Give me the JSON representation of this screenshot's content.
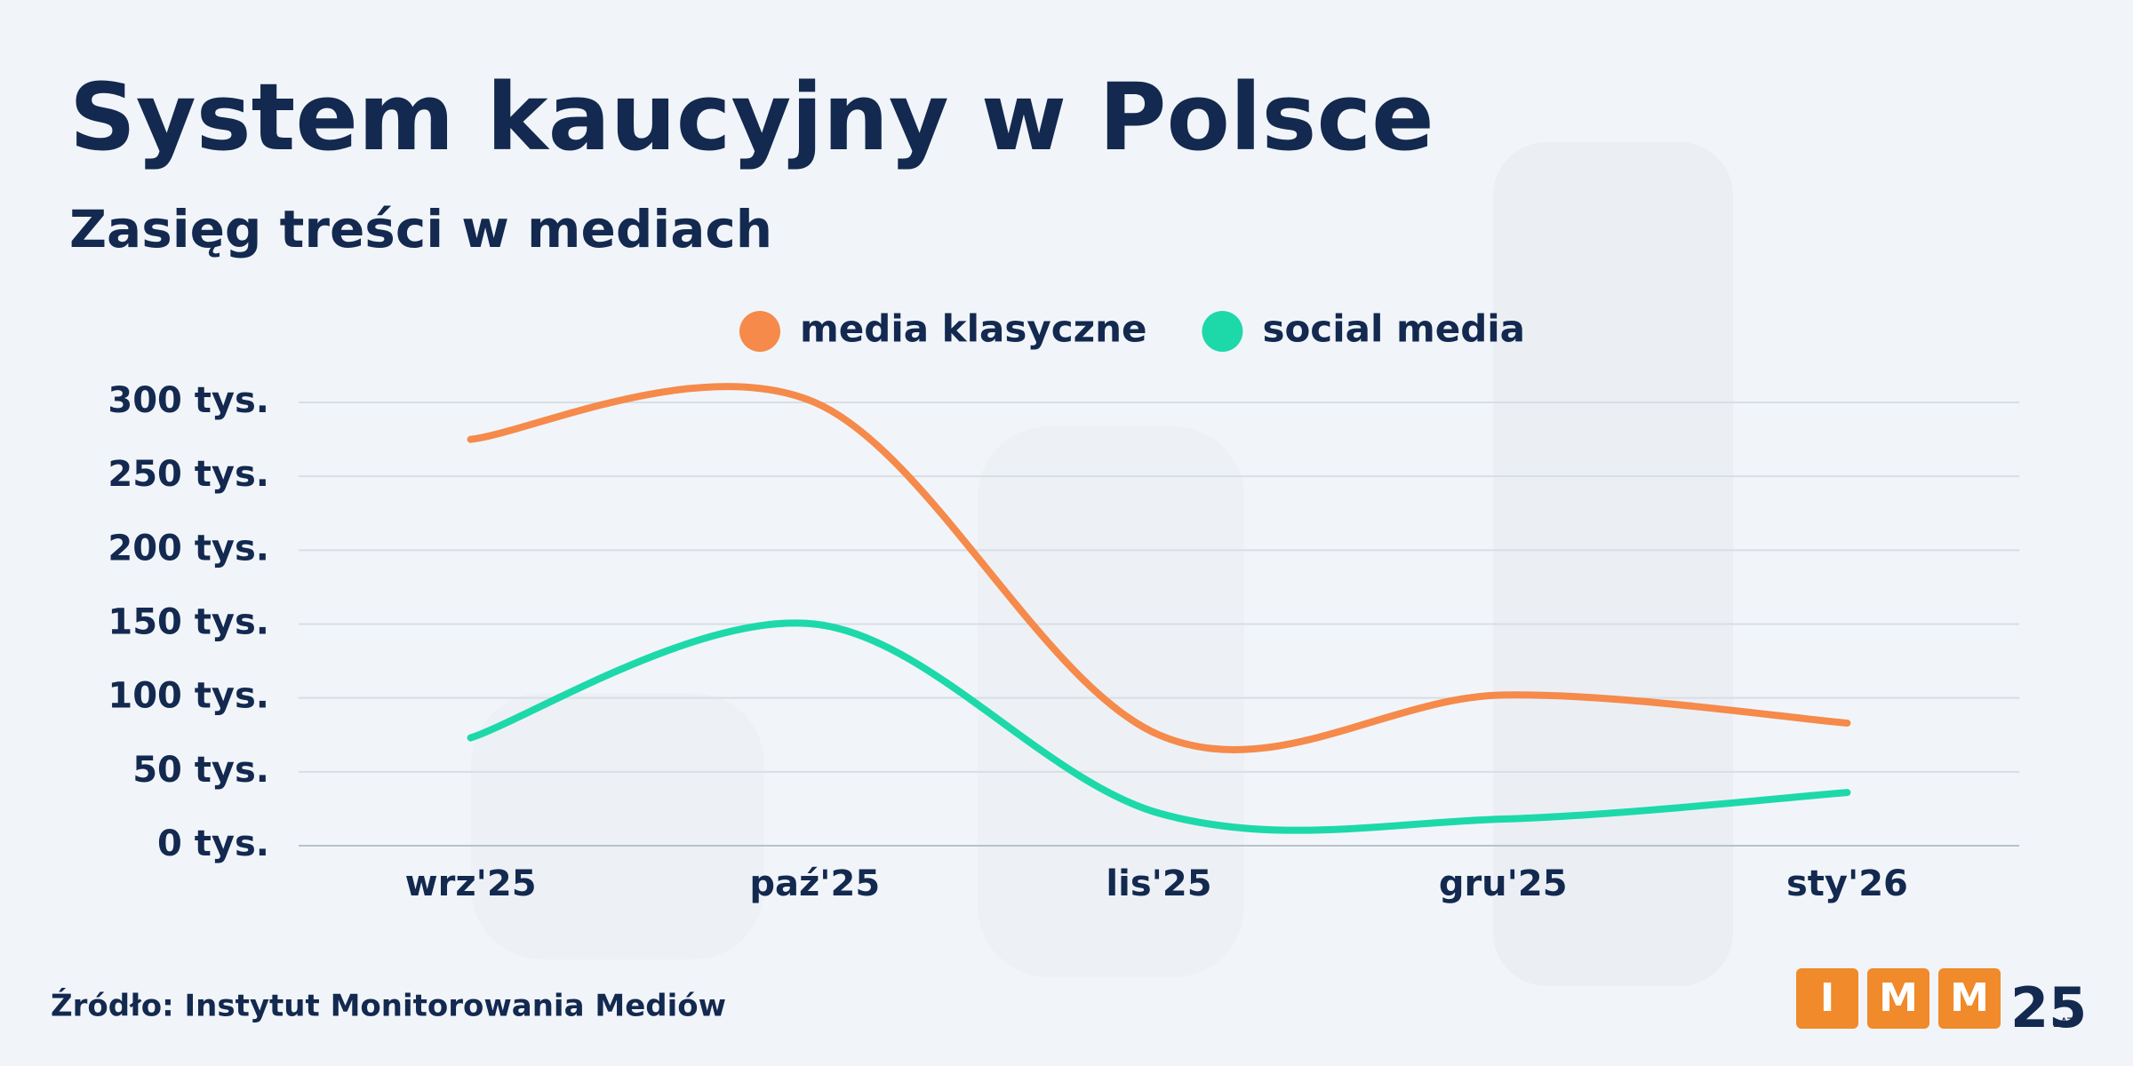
{
  "chart_data": {
    "type": "line",
    "title": "System kaucyjny w Polsce",
    "subtitle": "Zasięg treści w mediach",
    "categories": [
      "wrz'25",
      "paź'25",
      "lis'25",
      "gru'25",
      "sty'26"
    ],
    "series": [
      {
        "name": "media klasyczne",
        "color": "#f58a4b",
        "values": [
          275,
          300,
          75,
          102,
          83
        ]
      },
      {
        "name": "social media",
        "color": "#1dd9a9",
        "values": [
          73,
          150,
          22,
          18,
          36
        ]
      }
    ],
    "ylim": [
      0,
      300
    ],
    "yticks": [
      {
        "value": 0,
        "label": "0 tys."
      },
      {
        "value": 50,
        "label": "50 tys."
      },
      {
        "value": 100,
        "label": "100 tys."
      },
      {
        "value": 150,
        "label": "150 tys."
      },
      {
        "value": 200,
        "label": "200 tys."
      },
      {
        "value": 250,
        "label": "250 tys."
      },
      {
        "value": 300,
        "label": "300 tys."
      }
    ],
    "grid": true,
    "legend": "top",
    "source": "Źródło: Instytut Monitorowania Mediów"
  },
  "logo": {
    "letters": [
      "I",
      "M",
      "M"
    ],
    "years": "25",
    "label": "LAT"
  }
}
